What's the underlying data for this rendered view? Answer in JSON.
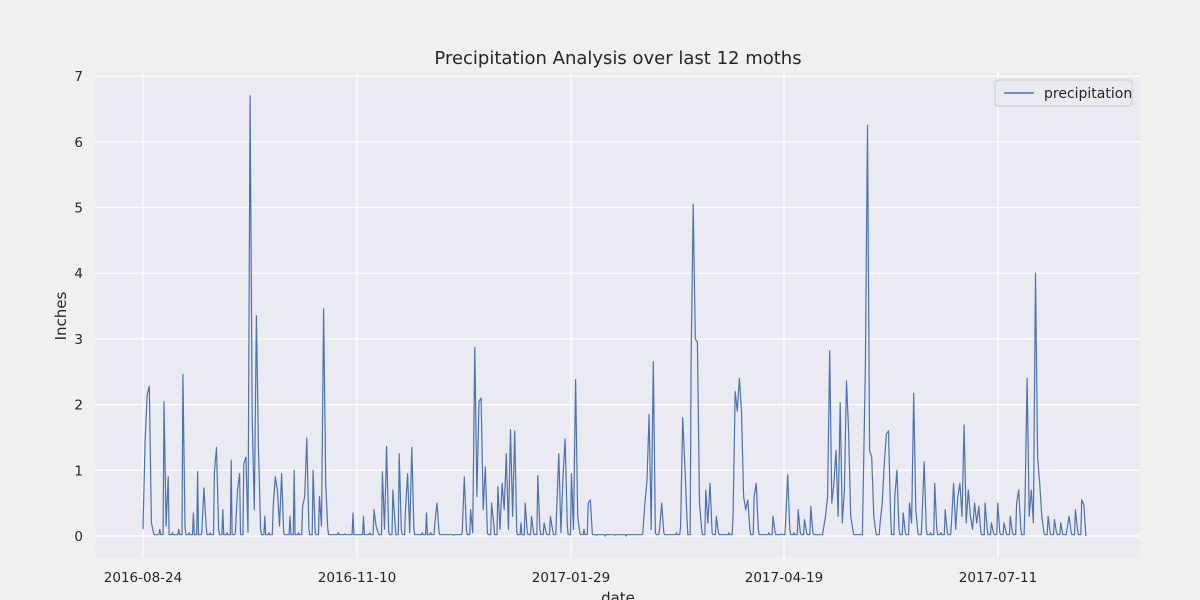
{
  "chart_data": {
    "type": "line",
    "title": "Precipitation Analysis over last 12 moths",
    "xlabel": "date",
    "ylabel": "Inches",
    "x_tick_labels": [
      "2016-08-24",
      "2016-11-10",
      "2017-01-29",
      "2017-04-19",
      "2017-07-11"
    ],
    "y_tick_labels": [
      "0",
      "1",
      "2",
      "3",
      "4",
      "5",
      "6",
      "7"
    ],
    "ylim": [
      -0.35,
      7.1
    ],
    "grid": true,
    "legend_position": "top-right",
    "series": [
      {
        "name": "precipitation",
        "color": "#4c72b0",
        "points": [
          [
            0,
            0.1
          ],
          [
            1,
            1.45
          ],
          [
            2,
            2.15
          ],
          [
            3,
            2.28
          ],
          [
            4,
            0.2
          ],
          [
            5,
            0.05
          ],
          [
            8,
            0.1
          ],
          [
            10,
            2.05
          ],
          [
            11,
            0.15
          ],
          [
            12,
            0.9
          ],
          [
            14,
            0.05
          ],
          [
            17,
            0.1
          ],
          [
            19,
            2.46
          ],
          [
            20,
            0.15
          ],
          [
            22,
            0.05
          ],
          [
            24,
            0.35
          ],
          [
            26,
            0.98
          ],
          [
            28,
            0.05
          ],
          [
            29,
            0.73
          ],
          [
            30,
            0.2
          ],
          [
            32,
            0.05
          ],
          [
            34,
            0.97
          ],
          [
            35,
            1.35
          ],
          [
            36,
            0.1
          ],
          [
            38,
            0.4
          ],
          [
            40,
            0.05
          ],
          [
            42,
            1.15
          ],
          [
            44,
            0.05
          ],
          [
            45,
            0.7
          ],
          [
            46,
            0.95
          ],
          [
            48,
            1.1
          ],
          [
            49,
            1.2
          ],
          [
            50,
            0.06
          ],
          [
            51,
            6.7
          ],
          [
            52,
            1.8
          ],
          [
            53,
            0.4
          ],
          [
            54,
            3.35
          ],
          [
            55,
            1.3
          ],
          [
            56,
            0.1
          ],
          [
            58,
            0.3
          ],
          [
            60,
            0.05
          ],
          [
            62,
            0.45
          ],
          [
            63,
            0.9
          ],
          [
            64,
            0.7
          ],
          [
            65,
            0.15
          ],
          [
            66,
            0.95
          ],
          [
            67,
            0.05
          ],
          [
            70,
            0.3
          ],
          [
            72,
            1.0
          ],
          [
            74,
            0.05
          ],
          [
            76,
            0.45
          ],
          [
            77,
            0.6
          ],
          [
            78,
            1.49
          ],
          [
            79,
            0.1
          ],
          [
            81,
            1.0
          ],
          [
            82,
            0.05
          ],
          [
            84,
            0.6
          ],
          [
            85,
            0.15
          ],
          [
            86,
            3.46
          ],
          [
            87,
            0.8
          ],
          [
            88,
            0.1
          ],
          [
            90,
            0.02
          ],
          [
            93,
            0.05
          ],
          [
            96,
            0.03
          ],
          [
            100,
            0.35
          ],
          [
            102,
            0.02
          ],
          [
            105,
            0.3
          ],
          [
            108,
            0.05
          ],
          [
            110,
            0.4
          ],
          [
            111,
            0.15
          ],
          [
            112,
            0.05
          ],
          [
            114,
            0.98
          ],
          [
            115,
            0.1
          ],
          [
            116,
            1.36
          ],
          [
            117,
            0.05
          ],
          [
            119,
            0.7
          ],
          [
            120,
            0.2
          ],
          [
            122,
            1.25
          ],
          [
            123,
            0.1
          ],
          [
            125,
            0.4
          ],
          [
            126,
            0.95
          ],
          [
            127,
            0.05
          ],
          [
            128,
            1.35
          ],
          [
            129,
            0.1
          ],
          [
            131,
            0.02
          ],
          [
            133,
            0.05
          ],
          [
            135,
            0.35
          ],
          [
            137,
            0.05
          ],
          [
            139,
            0.2
          ],
          [
            140,
            0.5
          ],
          [
            141,
            0.05
          ],
          [
            144,
            0.02
          ],
          [
            148,
            0.01
          ],
          [
            152,
            0.05
          ],
          [
            153,
            0.9
          ],
          [
            154,
            0.1
          ],
          [
            156,
            0.4
          ],
          [
            157,
            0.05
          ],
          [
            158,
            2.87
          ],
          [
            159,
            0.6
          ],
          [
            160,
            2.05
          ],
          [
            161,
            2.1
          ],
          [
            162,
            0.4
          ],
          [
            163,
            1.05
          ],
          [
            164,
            0.05
          ],
          [
            166,
            0.5
          ],
          [
            167,
            0.2
          ],
          [
            169,
            0.75
          ],
          [
            170,
            0.1
          ],
          [
            171,
            0.8
          ],
          [
            172,
            0.4
          ],
          [
            173,
            1.25
          ],
          [
            174,
            0.1
          ],
          [
            175,
            1.62
          ],
          [
            176,
            0.3
          ],
          [
            177,
            1.6
          ],
          [
            178,
            0.05
          ],
          [
            180,
            0.2
          ],
          [
            182,
            0.5
          ],
          [
            183,
            0.05
          ],
          [
            185,
            0.3
          ],
          [
            186,
            0.05
          ],
          [
            188,
            0.92
          ],
          [
            189,
            0.1
          ],
          [
            191,
            0.2
          ],
          [
            192,
            0.05
          ],
          [
            194,
            0.3
          ],
          [
            195,
            0.1
          ],
          [
            197,
            0.4
          ],
          [
            198,
            1.25
          ],
          [
            199,
            0.05
          ],
          [
            200,
            0.9
          ],
          [
            201,
            1.48
          ],
          [
            202,
            0.2
          ],
          [
            204,
            0.95
          ],
          [
            205,
            0.1
          ],
          [
            206,
            2.38
          ],
          [
            207,
            0.3
          ],
          [
            208,
            0.05
          ],
          [
            210,
            0.1
          ],
          [
            212,
            0.5
          ],
          [
            213,
            0.55
          ],
          [
            214,
            0.02
          ],
          [
            216,
            0.01
          ],
          [
            220,
            0.0
          ],
          [
            225,
            0.01
          ],
          [
            230,
            0.0
          ],
          [
            234,
            0.02
          ],
          [
            238,
            0.05
          ],
          [
            239,
            0.5
          ],
          [
            240,
            0.85
          ],
          [
            241,
            1.85
          ],
          [
            242,
            0.1
          ],
          [
            243,
            2.65
          ],
          [
            244,
            0.05
          ],
          [
            246,
            0.1
          ],
          [
            247,
            0.5
          ],
          [
            248,
            0.05
          ],
          [
            250,
            0.02
          ],
          [
            254,
            0.05
          ],
          [
            256,
            0.15
          ],
          [
            257,
            1.8
          ],
          [
            258,
            1.1
          ],
          [
            259,
            0.3
          ],
          [
            261,
            2.65
          ],
          [
            262,
            5.05
          ],
          [
            263,
            3.0
          ],
          [
            264,
            2.95
          ],
          [
            265,
            0.5
          ],
          [
            266,
            0.1
          ],
          [
            268,
            0.7
          ],
          [
            269,
            0.2
          ],
          [
            270,
            0.8
          ],
          [
            271,
            0.05
          ],
          [
            273,
            0.3
          ],
          [
            274,
            0.05
          ],
          [
            276,
            0.02
          ],
          [
            279,
            0.05
          ],
          [
            281,
            0.35
          ],
          [
            282,
            2.2
          ],
          [
            283,
            1.9
          ],
          [
            284,
            2.4
          ],
          [
            285,
            1.9
          ],
          [
            286,
            0.6
          ],
          [
            287,
            0.4
          ],
          [
            288,
            0.55
          ],
          [
            289,
            0.1
          ],
          [
            291,
            0.6
          ],
          [
            292,
            0.8
          ],
          [
            293,
            0.1
          ],
          [
            295,
            0.02
          ],
          [
            298,
            0.05
          ],
          [
            300,
            0.3
          ],
          [
            301,
            0.05
          ],
          [
            304,
            0.03
          ],
          [
            306,
            0.2
          ],
          [
            307,
            0.93
          ],
          [
            308,
            0.1
          ],
          [
            310,
            0.05
          ],
          [
            312,
            0.4
          ],
          [
            313,
            0.05
          ],
          [
            315,
            0.25
          ],
          [
            316,
            0.05
          ],
          [
            318,
            0.45
          ],
          [
            319,
            0.05
          ],
          [
            321,
            0.02
          ],
          [
            324,
            0.1
          ],
          [
            325,
            0.3
          ],
          [
            326,
            0.6
          ],
          [
            327,
            2.82
          ],
          [
            328,
            0.5
          ],
          [
            329,
            0.8
          ],
          [
            330,
            1.3
          ],
          [
            331,
            0.3
          ],
          [
            332,
            2.03
          ],
          [
            333,
            0.2
          ],
          [
            334,
            0.7
          ],
          [
            335,
            2.36
          ],
          [
            336,
            1.6
          ],
          [
            337,
            0.3
          ],
          [
            338,
            0.1
          ],
          [
            340,
            0.02
          ],
          [
            343,
            0.8
          ],
          [
            344,
            2.6
          ],
          [
            345,
            6.25
          ],
          [
            346,
            1.3
          ],
          [
            347,
            1.2
          ],
          [
            348,
            0.3
          ],
          [
            349,
            0.05
          ],
          [
            351,
            0.2
          ],
          [
            352,
            0.5
          ],
          [
            353,
            1.1
          ],
          [
            354,
            1.55
          ],
          [
            355,
            1.6
          ],
          [
            356,
            0.3
          ],
          [
            358,
            0.6
          ],
          [
            359,
            1.0
          ],
          [
            360,
            0.1
          ],
          [
            362,
            0.35
          ],
          [
            363,
            0.05
          ],
          [
            365,
            0.5
          ],
          [
            366,
            0.2
          ],
          [
            367,
            2.17
          ],
          [
            368,
            0.4
          ],
          [
            369,
            0.05
          ],
          [
            371,
            0.3
          ],
          [
            372,
            1.13
          ],
          [
            373,
            0.1
          ],
          [
            375,
            0.05
          ],
          [
            377,
            0.8
          ],
          [
            378,
            0.1
          ],
          [
            380,
            0.05
          ],
          [
            382,
            0.4
          ],
          [
            383,
            0.05
          ],
          [
            385,
            0.2
          ],
          [
            386,
            0.8
          ],
          [
            387,
            0.1
          ],
          [
            388,
            0.6
          ],
          [
            389,
            0.8
          ],
          [
            390,
            0.3
          ],
          [
            391,
            1.69
          ],
          [
            392,
            0.2
          ],
          [
            393,
            0.7
          ],
          [
            394,
            0.3
          ],
          [
            395,
            0.1
          ],
          [
            396,
            0.5
          ],
          [
            397,
            0.2
          ],
          [
            398,
            0.45
          ],
          [
            399,
            0.05
          ],
          [
            401,
            0.5
          ],
          [
            402,
            0.1
          ],
          [
            404,
            0.2
          ],
          [
            405,
            0.05
          ],
          [
            407,
            0.5
          ],
          [
            408,
            0.05
          ],
          [
            410,
            0.2
          ],
          [
            411,
            0.05
          ],
          [
            413,
            0.3
          ],
          [
            414,
            0.05
          ],
          [
            416,
            0.5
          ],
          [
            417,
            0.7
          ],
          [
            418,
            0.1
          ],
          [
            420,
            0.5
          ],
          [
            421,
            2.4
          ],
          [
            422,
            0.3
          ],
          [
            423,
            0.7
          ],
          [
            424,
            0.2
          ],
          [
            425,
            4.0
          ],
          [
            426,
            1.2
          ],
          [
            427,
            0.8
          ],
          [
            428,
            0.3
          ],
          [
            429,
            0.05
          ],
          [
            431,
            0.3
          ],
          [
            432,
            0.05
          ],
          [
            434,
            0.25
          ],
          [
            435,
            0.05
          ],
          [
            437,
            0.2
          ],
          [
            438,
            0.02
          ],
          [
            440,
            0.1
          ],
          [
            441,
            0.3
          ],
          [
            442,
            0.05
          ],
          [
            444,
            0.4
          ],
          [
            445,
            0.1
          ],
          [
            447,
            0.55
          ],
          [
            448,
            0.48
          ],
          [
            449,
            0.0
          ]
        ]
      }
    ]
  }
}
